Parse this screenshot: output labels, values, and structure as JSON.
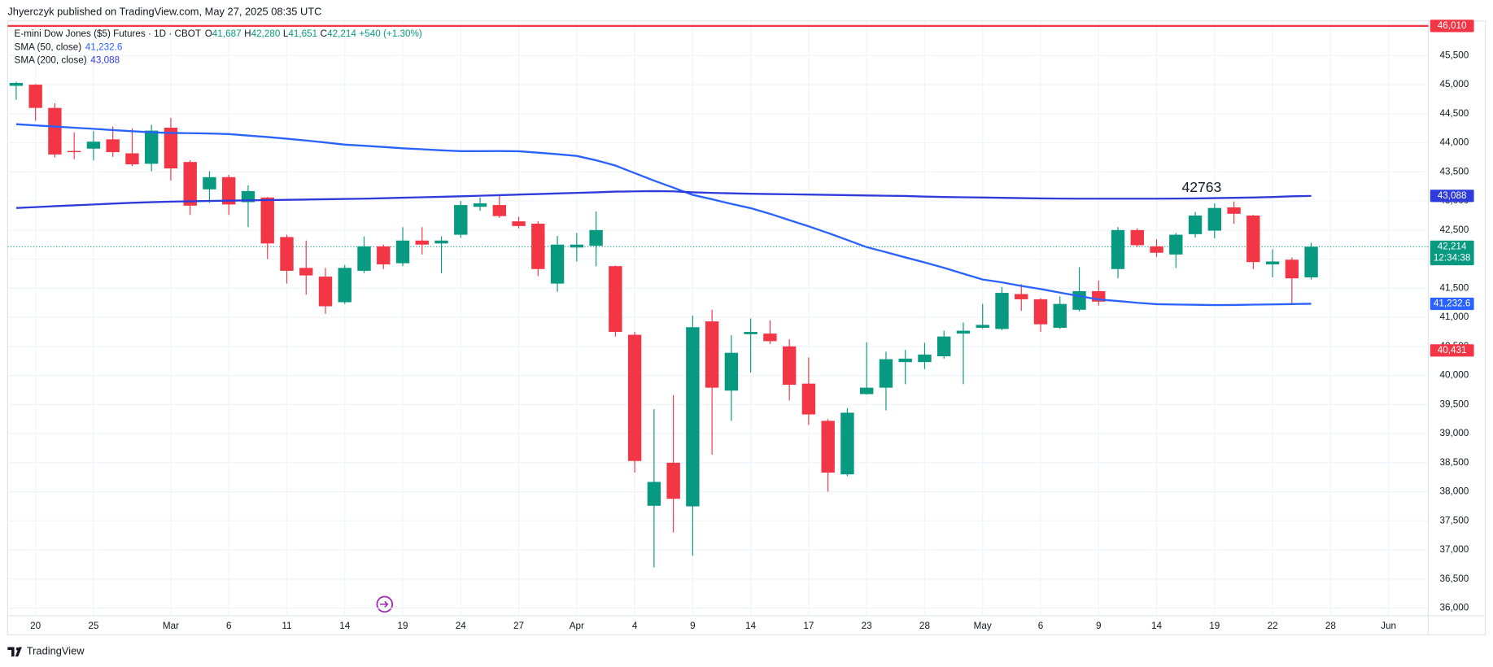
{
  "header": "Jhyerczyk published on TradingView.com, May 27, 2025 08:35 UTC",
  "footer": "TradingView",
  "chart_data": {
    "type": "candlestick",
    "title": "E-mini Dow Jones ($5) Futures · 1D · CBOT",
    "legend": {
      "ohlc": [
        {
          "key": "O",
          "value": "41,687"
        },
        {
          "key": "H",
          "value": "42,280"
        },
        {
          "key": "L",
          "value": "41,651"
        },
        {
          "key": "C",
          "value": "42,214"
        }
      ],
      "change": "+540 (+1.30%)"
    },
    "categories": [
      null,
      "20",
      null,
      null,
      "25",
      null,
      null,
      null,
      "Mar",
      null,
      null,
      "6",
      null,
      null,
      "11",
      null,
      null,
      "14",
      null,
      null,
      "19",
      null,
      null,
      "24",
      null,
      null,
      "27",
      null,
      null,
      "Apr",
      null,
      null,
      "4",
      null,
      null,
      "9",
      null,
      null,
      "14",
      null,
      null,
      "17",
      null,
      null,
      "23",
      null,
      null,
      "28",
      null,
      null,
      "May",
      null,
      null,
      "6",
      null,
      null,
      "9",
      null,
      null,
      "14",
      null,
      null,
      "19",
      null,
      null,
      "22",
      null,
      null,
      "28",
      null,
      null,
      "Jun"
    ],
    "open": [
      44980,
      45000,
      44600,
      43860,
      43900,
      44060,
      43820,
      43640,
      44260,
      43670,
      43200,
      43410,
      42980,
      43060,
      42380,
      41850,
      41700,
      41260,
      41800,
      42220,
      41930,
      42320,
      42270,
      42420,
      42900,
      42930,
      42650,
      42610,
      41580,
      42200,
      42230,
      41880,
      40700,
      37760,
      38500,
      37750,
      40930,
      39740,
      40710,
      40720,
      40500,
      39860,
      39220,
      38300,
      39680,
      39790,
      40230,
      40230,
      40330,
      40720,
      40820,
      40800,
      41400,
      41310,
      40820,
      41130,
      41450,
      41830,
      42500,
      42220,
      42080,
      42430,
      42490,
      42890,
      42750,
      41910,
      41990,
      41687,
      null,
      null,
      null,
      null
    ],
    "high": [
      45050,
      45010,
      44680,
      44180,
      44200,
      44280,
      44250,
      44310,
      44430,
      43700,
      43510,
      43450,
      43270,
      43070,
      42420,
      42320,
      41850,
      41900,
      42390,
      42250,
      42550,
      42550,
      42390,
      43000,
      43060,
      43100,
      42730,
      42650,
      42400,
      42450,
      42820,
      41890,
      40750,
      39420,
      39660,
      41030,
      41130,
      40690,
      40980,
      40950,
      40620,
      40310,
      39250,
      39440,
      40570,
      40410,
      40440,
      40560,
      40770,
      40910,
      41230,
      41520,
      41570,
      41330,
      41360,
      41860,
      41630,
      42550,
      42530,
      42340,
      42450,
      42810,
      42960,
      42990,
      42760,
      42170,
      42030,
      42280,
      null,
      null,
      null,
      null
    ],
    "low": [
      44740,
      44380,
      43750,
      43720,
      43700,
      43760,
      43600,
      43510,
      43350,
      42760,
      42970,
      42760,
      42550,
      42000,
      41580,
      41390,
      41060,
      41230,
      41760,
      41830,
      41880,
      42080,
      41760,
      42370,
      42830,
      42710,
      42530,
      41710,
      41440,
      41960,
      41880,
      40670,
      38330,
      36700,
      37300,
      36900,
      38640,
      39220,
      40050,
      40540,
      39570,
      39150,
      38000,
      38270,
      39670,
      39400,
      39850,
      40110,
      40290,
      39850,
      40800,
      40780,
      41110,
      40750,
      40800,
      41100,
      41200,
      41670,
      42210,
      42040,
      41850,
      42370,
      42360,
      42610,
      41830,
      41690,
      41230,
      41651,
      null,
      null,
      null,
      null
    ],
    "close": [
      45030,
      44600,
      43800,
      43840,
      44020,
      43840,
      43630,
      44210,
      43560,
      42920,
      43410,
      42940,
      43170,
      42270,
      41800,
      41720,
      41190,
      41850,
      42220,
      41910,
      42320,
      42250,
      42320,
      42930,
      42960,
      42740,
      42570,
      41830,
      42250,
      42250,
      42500,
      40750,
      38530,
      38170,
      37880,
      40830,
      39790,
      40390,
      40750,
      40590,
      39840,
      39330,
      38330,
      39360,
      39790,
      40280,
      40290,
      40360,
      40670,
      40770,
      40870,
      41420,
      41310,
      40880,
      41230,
      41450,
      41270,
      42500,
      42240,
      42110,
      42420,
      42750,
      42880,
      42780,
      41950,
      41960,
      41670,
      42214,
      null,
      null,
      null,
      null
    ],
    "up_color": "#089981",
    "down_color": "#f23645",
    "overlays": [
      {
        "name": "SMA (50, close)",
        "color": "#2962ff",
        "last": {
          "value": 41232.6,
          "label": "41,232.6"
        },
        "values": [
          44320,
          44300,
          44280,
          44260,
          44240,
          44220,
          44200,
          44180,
          44170,
          44165,
          44160,
          44150,
          44125,
          44100,
          44070,
          44040,
          44005,
          43970,
          43950,
          43928,
          43905,
          43890,
          43872,
          43856,
          43856,
          43858,
          43855,
          43830,
          43805,
          43775,
          43700,
          43610,
          43480,
          43350,
          43230,
          43105,
          43030,
          42950,
          42876,
          42780,
          42670,
          42565,
          42450,
          42330,
          42206,
          42120,
          42030,
          41944,
          41850,
          41750,
          41650,
          41600,
          41540,
          41487,
          41425,
          41365,
          41307,
          41280,
          41250,
          41226,
          41220,
          41215,
          41210,
          41212,
          41218,
          41222,
          41228,
          41232.6,
          null,
          null,
          null,
          null
        ]
      },
      {
        "name": "SMA (200, close)",
        "color": "#2e3bdb",
        "last": {
          "value": 43088,
          "label": "43,088"
        },
        "values": [
          42880,
          42895,
          42910,
          42925,
          42940,
          42955,
          42970,
          42980,
          42990,
          42995,
          43000,
          43005,
          43010,
          43015,
          43020,
          43025,
          43030,
          43035,
          43040,
          43048,
          43056,
          43064,
          43072,
          43080,
          43090,
          43100,
          43110,
          43120,
          43130,
          43140,
          43150,
          43160,
          43165,
          43170,
          43165,
          43150,
          43140,
          43132,
          43125,
          43120,
          43115,
          43110,
          43105,
          43100,
          43095,
          43090,
          43085,
          43075,
          43070,
          43065,
          43060,
          43055,
          43050,
          43045,
          43042,
          43040,
          43040,
          43040,
          43040,
          43040,
          43042,
          43045,
          43050,
          43055,
          43060,
          43070,
          43080,
          43088,
          null,
          null,
          null,
          null
        ]
      }
    ],
    "last_price": {
      "value": 42214,
      "label": "42,214",
      "countdown": "12:34:38"
    },
    "price_markers": [
      {
        "value": 46010,
        "label": "46,010",
        "color": "#f23645",
        "line": true
      },
      {
        "value": 40431,
        "label": "40,431",
        "color": "#f23645",
        "line": false
      }
    ],
    "annotation": "42763",
    "ylim": [
      35870,
      46080
    ],
    "yticks": [
      {
        "value": 36000,
        "label": "36,000"
      },
      {
        "value": 36500,
        "label": "36,500"
      },
      {
        "value": 37000,
        "label": "37,000"
      },
      {
        "value": 37500,
        "label": "37,500"
      },
      {
        "value": 38000,
        "label": "38,000"
      },
      {
        "value": 38500,
        "label": "38,500"
      },
      {
        "value": 39000,
        "label": "39,000"
      },
      {
        "value": 39500,
        "label": "39,500"
      },
      {
        "value": 40000,
        "label": "40,000"
      },
      {
        "value": 40500,
        "label": "40,500"
      },
      {
        "value": 41000,
        "label": "41,000"
      },
      {
        "value": 41500,
        "label": "41,500"
      },
      {
        "value": 42000,
        "label": "42,000"
      },
      {
        "value": 42500,
        "label": "42,500"
      },
      {
        "value": 43000,
        "label": "43,000"
      },
      {
        "value": 43500,
        "label": "43,500"
      },
      {
        "value": 44000,
        "label": "44,000"
      },
      {
        "value": 44500,
        "label": "44,500"
      },
      {
        "value": 45000,
        "label": "45,000"
      },
      {
        "value": 45500,
        "label": "45,500"
      }
    ],
    "grid": true
  }
}
